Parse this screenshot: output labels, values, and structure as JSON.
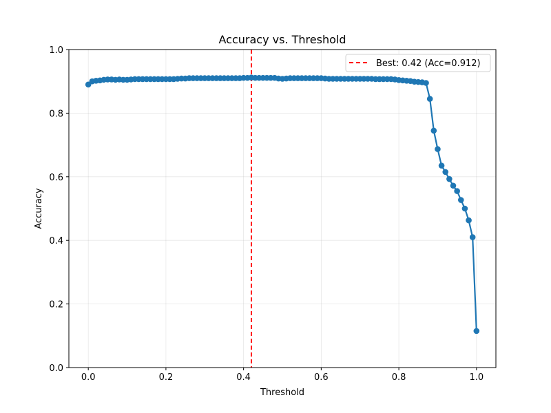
{
  "chart_data": {
    "type": "line",
    "title": "Accuracy vs. Threshold",
    "xlabel": "Threshold",
    "ylabel": "Accuracy",
    "xlim": [
      -0.05,
      1.05
    ],
    "ylim": [
      0,
      1.0
    ],
    "xticks": [
      "0.0",
      "0.2",
      "0.4",
      "0.6",
      "0.8",
      "1.0"
    ],
    "yticks": [
      "0.0",
      "0.2",
      "0.4",
      "0.6",
      "0.8",
      "1.0"
    ],
    "grid": true,
    "legend_position": "top-right",
    "colors": {
      "series": "#1f77b4",
      "best_line": "#ff0000"
    },
    "best_threshold": {
      "x": 0.42,
      "label": "Best: 0.42 (Acc=0.912)"
    },
    "series": [
      {
        "x": [
          0.0,
          0.01,
          0.02,
          0.03,
          0.04,
          0.05,
          0.06,
          0.07,
          0.08,
          0.09,
          0.1,
          0.11,
          0.12,
          0.13,
          0.14,
          0.15,
          0.16,
          0.17,
          0.18,
          0.19,
          0.2,
          0.21,
          0.22,
          0.23,
          0.24,
          0.25,
          0.26,
          0.27,
          0.28,
          0.29,
          0.3,
          0.31,
          0.32,
          0.33,
          0.34,
          0.35,
          0.36,
          0.37,
          0.38,
          0.39,
          0.4,
          0.41,
          0.42,
          0.43,
          0.44,
          0.45,
          0.46,
          0.47,
          0.48,
          0.49,
          0.5,
          0.51,
          0.52,
          0.53,
          0.54,
          0.55,
          0.56,
          0.57,
          0.58,
          0.59,
          0.6,
          0.61,
          0.62,
          0.63,
          0.64,
          0.65,
          0.66,
          0.67,
          0.68,
          0.69,
          0.7,
          0.71,
          0.72,
          0.73,
          0.74,
          0.75,
          0.76,
          0.77,
          0.78,
          0.79,
          0.8,
          0.81,
          0.82,
          0.83,
          0.84,
          0.85,
          0.86,
          0.87,
          0.88,
          0.89,
          0.9,
          0.91,
          0.92,
          0.93,
          0.94,
          0.95,
          0.96,
          0.97,
          0.98,
          0.99,
          1.0
        ],
        "y": [
          0.89,
          0.9,
          0.902,
          0.903,
          0.905,
          0.906,
          0.906,
          0.905,
          0.906,
          0.905,
          0.905,
          0.906,
          0.907,
          0.907,
          0.907,
          0.907,
          0.907,
          0.907,
          0.907,
          0.907,
          0.907,
          0.907,
          0.907,
          0.908,
          0.909,
          0.909,
          0.91,
          0.91,
          0.91,
          0.91,
          0.91,
          0.91,
          0.91,
          0.91,
          0.91,
          0.91,
          0.91,
          0.91,
          0.91,
          0.91,
          0.911,
          0.911,
          0.912,
          0.911,
          0.911,
          0.911,
          0.911,
          0.911,
          0.911,
          0.909,
          0.908,
          0.909,
          0.91,
          0.91,
          0.91,
          0.91,
          0.91,
          0.91,
          0.91,
          0.91,
          0.91,
          0.909,
          0.908,
          0.908,
          0.908,
          0.908,
          0.908,
          0.908,
          0.908,
          0.908,
          0.908,
          0.908,
          0.908,
          0.908,
          0.907,
          0.907,
          0.907,
          0.907,
          0.907,
          0.906,
          0.904,
          0.903,
          0.902,
          0.901,
          0.899,
          0.898,
          0.897,
          0.895,
          0.845,
          0.745,
          0.687,
          0.635,
          0.615,
          0.593,
          0.572,
          0.555,
          0.527,
          0.5,
          0.463,
          0.41,
          0.115
        ]
      }
    ]
  }
}
